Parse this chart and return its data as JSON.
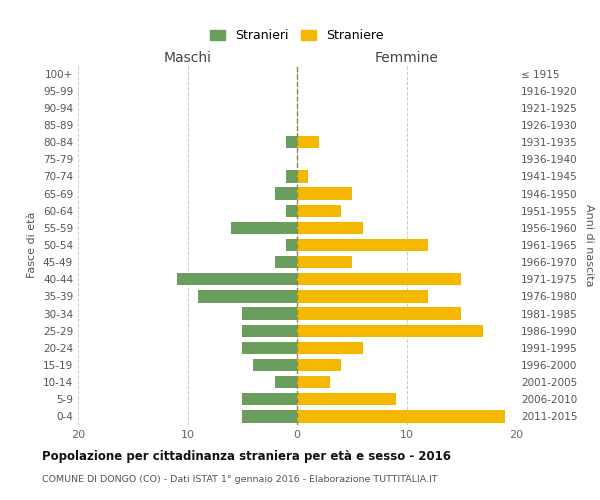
{
  "age_groups": [
    "100+",
    "95-99",
    "90-94",
    "85-89",
    "80-84",
    "75-79",
    "70-74",
    "65-69",
    "60-64",
    "55-59",
    "50-54",
    "45-49",
    "40-44",
    "35-39",
    "30-34",
    "25-29",
    "20-24",
    "15-19",
    "10-14",
    "5-9",
    "0-4"
  ],
  "birth_years": [
    "≤ 1915",
    "1916-1920",
    "1921-1925",
    "1926-1930",
    "1931-1935",
    "1936-1940",
    "1941-1945",
    "1946-1950",
    "1951-1955",
    "1956-1960",
    "1961-1965",
    "1966-1970",
    "1971-1975",
    "1976-1980",
    "1981-1985",
    "1986-1990",
    "1991-1995",
    "1996-2000",
    "2001-2005",
    "2006-2010",
    "2011-2015"
  ],
  "maschi": [
    0,
    0,
    0,
    0,
    1,
    0,
    1,
    2,
    1,
    6,
    1,
    2,
    11,
    9,
    5,
    5,
    5,
    4,
    2,
    5,
    5
  ],
  "femmine": [
    0,
    0,
    0,
    0,
    2,
    0,
    1,
    5,
    4,
    6,
    12,
    5,
    15,
    12,
    15,
    17,
    6,
    4,
    3,
    9,
    19
  ],
  "color_maschi": "#6a9e5f",
  "color_femmine": "#f5b800",
  "title": "Popolazione per cittadinanza straniera per età e sesso - 2016",
  "subtitle": "COMUNE DI DONGO (CO) - Dati ISTAT 1° gennaio 2016 - Elaborazione TUTTITALIA.IT",
  "xlabel_left": "Maschi",
  "xlabel_right": "Femmine",
  "ylabel_left": "Fasce di età",
  "ylabel_right": "Anni di nascita",
  "xlim": 20,
  "legend_stranieri": "Stranieri",
  "legend_straniere": "Straniere",
  "bg_color": "#ffffff",
  "grid_color": "#cccccc"
}
